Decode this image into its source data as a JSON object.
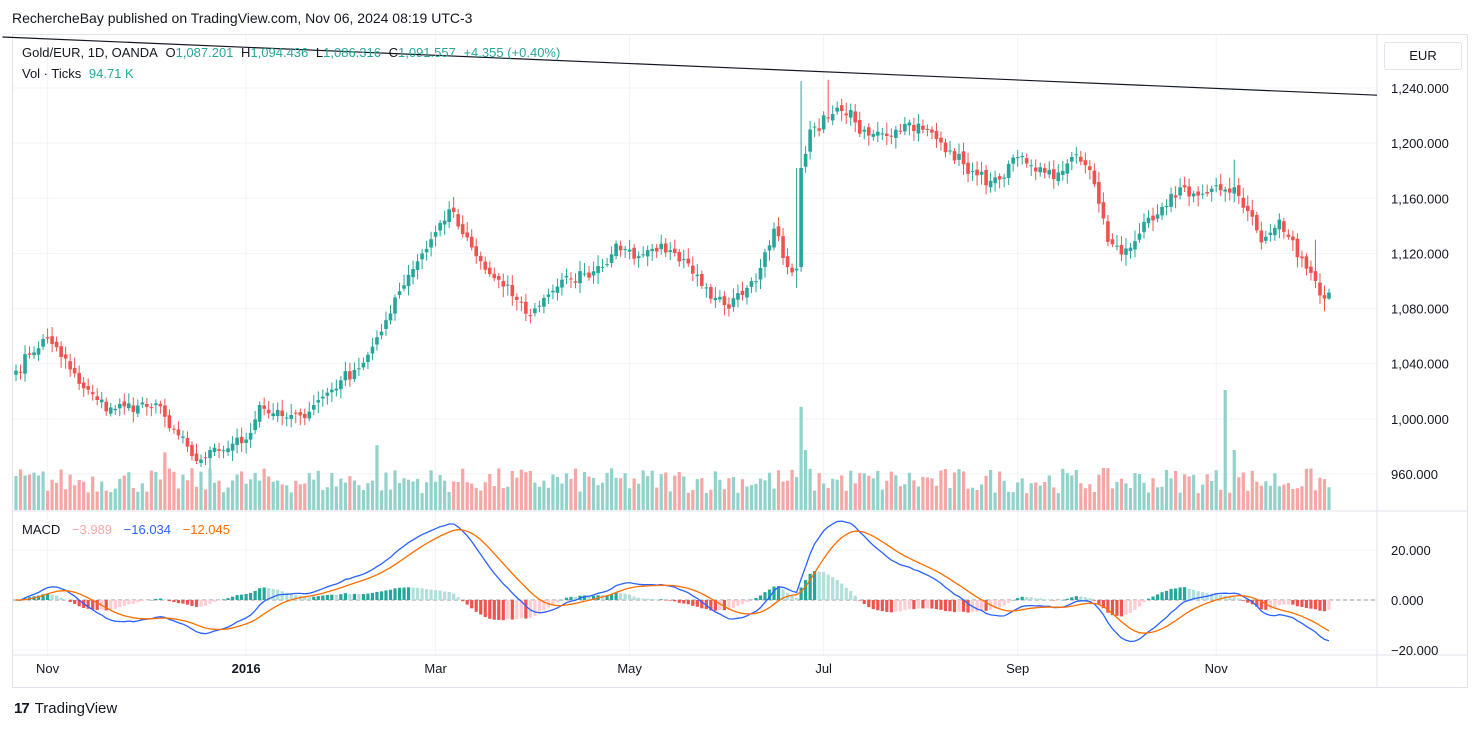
{
  "header": {
    "published_by": "RechercheBay published on TradingView.com, Nov 06, 2024 08:19 UTC-3"
  },
  "legend": {
    "symbol": "Gold/EUR, 1D, OANDA",
    "open_label": "O",
    "open": "1,087.201",
    "high_label": "H",
    "high": "1,094.436",
    "low_label": "L",
    "low": "1,086.316",
    "close_label": "C",
    "close": "1,091.557",
    "change": "+4.355 (+0.40%)",
    "vol_label": "Vol · Ticks",
    "vol_value": "94.71 K",
    "macd_label": "MACD",
    "macd_hist": "−3.989",
    "macd_line": "−16.034",
    "macd_signal": "−12.045"
  },
  "currency_button": "EUR",
  "footer": {
    "brand": "TradingView",
    "logo_text": "17"
  },
  "colors": {
    "up": "#26a69a",
    "down": "#ef5350",
    "vol_up": "#93d2cb",
    "vol_down": "#f6a7a5",
    "macd_line": "#2962ff",
    "signal_line": "#ff6d00",
    "grid": "#f0f3fa",
    "trendline": "#131722"
  },
  "chart_data": [
    {
      "type": "candlestick",
      "title": "Gold/EUR, 1D, OANDA",
      "ylabel": "EUR",
      "ylim": [
        930,
        1270
      ],
      "y_ticks": [
        960,
        1000,
        1040,
        1080,
        1120,
        1160,
        1200,
        1240
      ],
      "y_tick_labels": [
        "960.000",
        "1,000.000",
        "1,040.000",
        "1,080.000",
        "1,120.000",
        "1,160.000",
        "1,200.000",
        "1,240.000"
      ],
      "x_ticks": [
        {
          "label": "Nov",
          "index": 7,
          "bold": false
        },
        {
          "label": "2016",
          "index": 51,
          "bold": true
        },
        {
          "label": "Mar",
          "index": 93,
          "bold": false
        },
        {
          "label": "May",
          "index": 136,
          "bold": false
        },
        {
          "label": "Jul",
          "index": 179,
          "bold": false
        },
        {
          "label": "Sep",
          "index": 222,
          "bold": false
        },
        {
          "label": "Nov",
          "index": 266,
          "bold": false
        }
      ],
      "n_bars": 292,
      "close_anchors": [
        [
          0,
          1035
        ],
        [
          6,
          1058
        ],
        [
          9,
          1052
        ],
        [
          14,
          1025
        ],
        [
          20,
          1008
        ],
        [
          28,
          1010
        ],
        [
          32,
          1006
        ],
        [
          36,
          988
        ],
        [
          40,
          968
        ],
        [
          44,
          975
        ],
        [
          48,
          982
        ],
        [
          51,
          985
        ],
        [
          54,
          1010
        ],
        [
          58,
          1002
        ],
        [
          62,
          1000
        ],
        [
          66,
          1010
        ],
        [
          72,
          1028
        ],
        [
          76,
          1038
        ],
        [
          80,
          1055
        ],
        [
          84,
          1088
        ],
        [
          88,
          1110
        ],
        [
          92,
          1130
        ],
        [
          96,
          1152
        ],
        [
          100,
          1128
        ],
        [
          104,
          1108
        ],
        [
          110,
          1090
        ],
        [
          114,
          1075
        ],
        [
          118,
          1092
        ],
        [
          122,
          1100
        ],
        [
          128,
          1108
        ],
        [
          134,
          1125
        ],
        [
          138,
          1118
        ],
        [
          142,
          1125
        ],
        [
          148,
          1112
        ],
        [
          154,
          1092
        ],
        [
          158,
          1085
        ],
        [
          164,
          1100
        ],
        [
          168,
          1138
        ],
        [
          171,
          1110
        ],
        [
          173,
          1105
        ],
        [
          174,
          1182
        ],
        [
          176,
          1210
        ],
        [
          180,
          1218
        ],
        [
          184,
          1225
        ],
        [
          188,
          1205
        ],
        [
          194,
          1208
        ],
        [
          198,
          1215
        ],
        [
          202,
          1208
        ],
        [
          206,
          1198
        ],
        [
          212,
          1178
        ],
        [
          218,
          1170
        ],
        [
          222,
          1190
        ],
        [
          226,
          1182
        ],
        [
          230,
          1175
        ],
        [
          234,
          1190
        ],
        [
          238,
          1182
        ],
        [
          242,
          1130
        ],
        [
          245,
          1120
        ],
        [
          250,
          1138
        ],
        [
          254,
          1150
        ],
        [
          258,
          1168
        ],
        [
          262,
          1162
        ],
        [
          266,
          1165
        ],
        [
          270,
          1168
        ],
        [
          274,
          1145
        ],
        [
          276,
          1128
        ],
        [
          280,
          1142
        ],
        [
          284,
          1122
        ],
        [
          288,
          1100
        ],
        [
          290,
          1085
        ],
        [
          291,
          1091.557
        ]
      ],
      "last_bar": {
        "open": 1087.201,
        "high": 1094.436,
        "low": 1086.316,
        "close": 1091.557
      },
      "trendline": {
        "start": [
          -3,
          1277
        ],
        "end": [
          300,
          1235
        ]
      }
    },
    {
      "type": "bar",
      "title": "Vol · Ticks",
      "last_value": 94710,
      "spikes": [
        {
          "index": 33,
          "value": 240000
        },
        {
          "index": 80,
          "value": 270000
        },
        {
          "index": 174,
          "value": 430000
        },
        {
          "index": 175,
          "value": 250000
        },
        {
          "index": 268,
          "value": 500000
        },
        {
          "index": 270,
          "value": 250000
        }
      ],
      "baseline_range": [
        70000,
        175000
      ]
    },
    {
      "type": "line",
      "title": "MACD",
      "ylim": [
        -22,
        33
      ],
      "y_ticks": [
        20,
        0,
        -20
      ],
      "y_tick_labels": [
        "20.000",
        "0.000",
        "−20.000"
      ],
      "series": [
        {
          "name": "MACD",
          "color": "#2962ff",
          "last": -16.034
        },
        {
          "name": "Signal",
          "color": "#ff6d00",
          "last": -12.045
        },
        {
          "name": "Histogram",
          "last": -3.989
        }
      ]
    }
  ]
}
